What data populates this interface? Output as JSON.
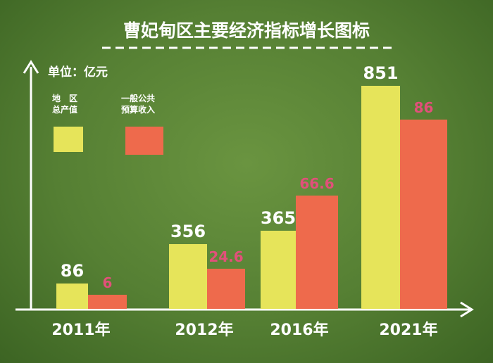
{
  "colors": {
    "series_a": "#e6e45a",
    "series_b": "#ee6a4c",
    "value_b_text": "#e2507a",
    "axis": "#ffffff",
    "title_underline": "#ffffff"
  },
  "chart_data": {
    "type": "bar",
    "title": "曹妃甸区主要经济指标增长图标",
    "unit_label": "单位：亿元",
    "categories": [
      "2011年",
      "2012年",
      "2016年",
      "2021年"
    ],
    "series": [
      {
        "name_lines": [
          "地　区",
          "总产值"
        ],
        "values": [
          86,
          356,
          365,
          851
        ]
      },
      {
        "name_lines": [
          "一般公共",
          "预算收入"
        ],
        "values": [
          6,
          24.6,
          66.6,
          86
        ]
      }
    ],
    "value_labels": [
      [
        "86",
        "356",
        "365",
        "851"
      ],
      [
        "6",
        "24.6",
        "66.6",
        "86"
      ]
    ],
    "legend_placement": "top-left",
    "grid": false
  }
}
